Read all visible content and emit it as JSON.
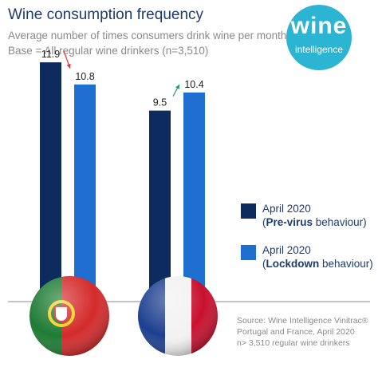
{
  "header": {
    "title": "Wine consumption frequency",
    "subtitle": "Average number of times consumers drink wine per month",
    "base": "Base = All regular wine drinkers (n=3,510)"
  },
  "logo": {
    "word": "wine",
    "tagline": "intelligence"
  },
  "colors": {
    "pre_virus": "#0d2b5e",
    "lockdown": "#1f6fd1",
    "arrow_down": "#e0303a",
    "arrow_up": "#1aa06a",
    "text_dark": "#1f3b6e",
    "text_gray": "#8a8a8a"
  },
  "legend": [
    {
      "line1": "April 2020",
      "paren_open": "(",
      "bold": "Pre-virus",
      "rest": " behaviour)"
    },
    {
      "line1": "April 2020",
      "paren_open": "(",
      "bold": "Lockdown",
      "rest": " behaviour)"
    }
  ],
  "source": {
    "line1": "Source: Wine Intelligence Vinitrac®",
    "line2": "Portugal and France, April 2020",
    "line3": "n> 3,510 regular wine drinkers"
  },
  "chart_data": {
    "type": "bar",
    "categories": [
      "Portugal",
      "France"
    ],
    "category_icons": [
      "portugal-flag",
      "france-flag"
    ],
    "series": [
      {
        "name": "April 2020 (Pre-virus behaviour)",
        "values": [
          11.9,
          9.5
        ]
      },
      {
        "name": "April 2020 (Lockdown behaviour)",
        "values": [
          10.8,
          10.4
        ]
      }
    ],
    "data_labels": [
      [
        "11.9",
        "9.5"
      ],
      [
        "10.8",
        "10.4"
      ]
    ],
    "change_direction": [
      "down",
      "up"
    ],
    "ylim": [
      0,
      12.5
    ],
    "title": "Wine consumption frequency",
    "xlabel": "",
    "ylabel": "",
    "grid": false,
    "legend_position": "right"
  }
}
